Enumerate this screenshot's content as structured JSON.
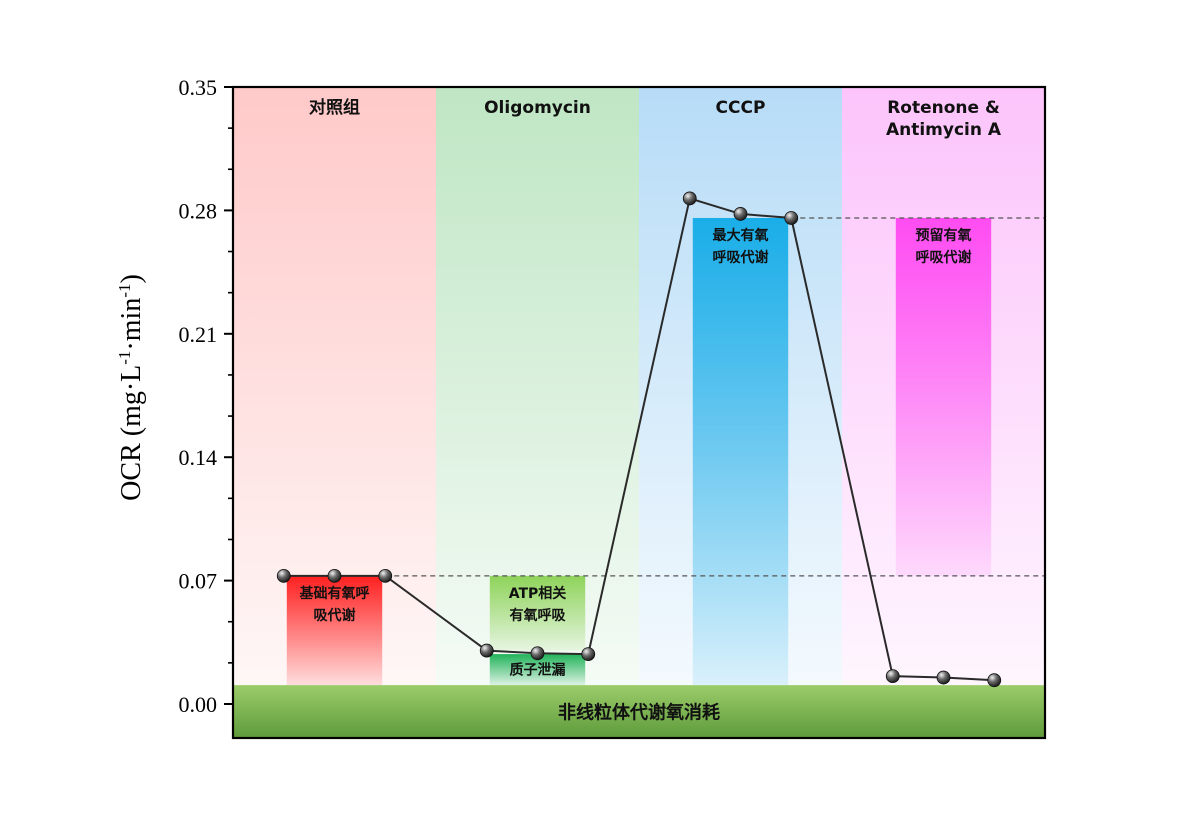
{
  "chart_data": {
    "type": "line",
    "ylabel_main": "OCR (mg·L",
    "ylabel_sup1": "-1",
    "ylabel_mid": "·min",
    "ylabel_sup2": "-1",
    "ylabel_end": ")",
    "ylim": [
      0,
      0.35
    ],
    "yticks": [
      0.0,
      0.07,
      0.14,
      0.21,
      0.28,
      0.35
    ],
    "ytick_labels": [
      "0.00",
      "0.07",
      "0.14",
      "0.21",
      "0.28",
      "0.35"
    ],
    "grid": false,
    "phases": [
      {
        "label_lines": [
          "对照组"
        ],
        "color": "#ffc9c9"
      },
      {
        "label_lines": [
          "Oligomycin"
        ],
        "color": "#bfe6c4"
      },
      {
        "label_lines": [
          "CCCP"
        ],
        "color": "#b7dcf7"
      },
      {
        "label_lines": [
          "Rotenone &",
          "Antimycin A"
        ],
        "color": "#fcc4fb"
      }
    ],
    "x": [
      1,
      2,
      3,
      4,
      5,
      6,
      7,
      8,
      9,
      10,
      11,
      12
    ],
    "values": [
      0.0727,
      0.0727,
      0.0727,
      0.0303,
      0.0288,
      0.0283,
      0.2868,
      0.278,
      0.2757,
      0.0158,
      0.015,
      0.0135
    ],
    "reference_lines": [
      0.0727,
      0.2757
    ],
    "annotation_boxes": [
      {
        "label_lines": [
          "基础有氧呼",
          "吸代谢"
        ],
        "phase": 0,
        "ymin": 0.0107,
        "ymax": 0.0727,
        "color": "#ff2020"
      },
      {
        "label_lines": [
          "ATP相关",
          "有氧呼吸"
        ],
        "phase": 1,
        "ymin": 0.0303,
        "ymax": 0.0727,
        "color": "#8fd35a"
      },
      {
        "label_lines": [
          "质子泄漏"
        ],
        "phase": 1,
        "ymin": 0.0107,
        "ymax": 0.0283,
        "color": "#22b35a"
      },
      {
        "label_lines": [
          "最大有氧",
          "呼吸代谢"
        ],
        "phase": 2,
        "ymin": 0.0107,
        "ymax": 0.2757,
        "color": "#1aaee8"
      },
      {
        "label_lines": [
          "预留有氧",
          "呼吸代谢"
        ],
        "phase": 3,
        "ymin": 0.0727,
        "ymax": 0.2757,
        "color": "#ff4cf2"
      }
    ],
    "baseline_band": {
      "label": "非线粒体代谢氧消耗",
      "ymax": 0.0107,
      "color": "#5e9b3b"
    }
  }
}
